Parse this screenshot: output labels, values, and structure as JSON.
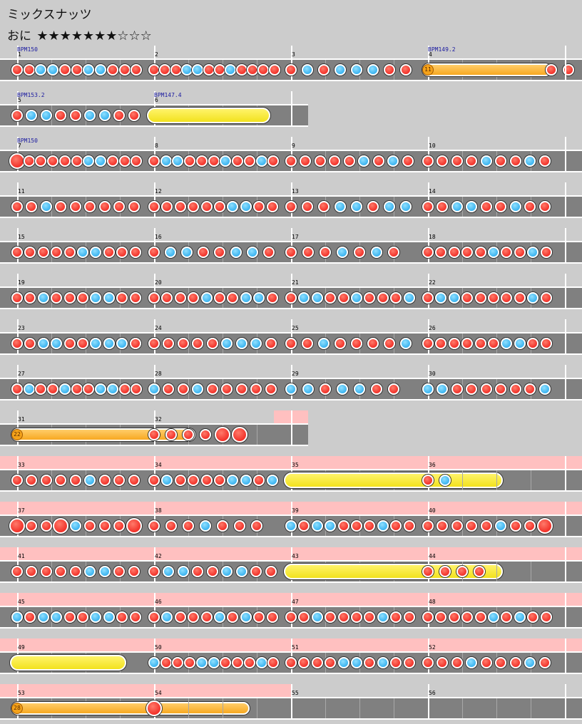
{
  "song": {
    "title": "ミックスナッツ",
    "course": "おに",
    "stars": "★★★★★★★☆☆☆"
  },
  "rows": [
    {
      "top": 64,
      "width": 816,
      "measures": [
        {
          "num": "1",
          "bpm": "BPM150",
          "notes": "ddkkddkkddd"
        },
        {
          "num": "2",
          "notes": "dddkkddkdddd"
        },
        {
          "num": "3",
          "notes": "dkdkkkdd"
        },
        {
          "num": "4",
          "bpm": "BPM149.2",
          "notes": "dd",
          "balloon": "11",
          "roll_to": 0.9
        }
      ]
    },
    {
      "top": 128,
      "width": 432,
      "measures": [
        {
          "num": "5",
          "bpm": "BPM153.2",
          "notes": "dkkddkkdd"
        },
        {
          "num": "6",
          "bpm": "BPM147.4",
          "roll": "yellow",
          "roll_len": 0.9
        }
      ]
    },
    {
      "top": 192,
      "width": 816,
      "measures": [
        {
          "num": "7",
          "bpm": "BPM150",
          "notes": "Ddddddkkddd"
        },
        {
          "num": "8",
          "notes": "dkkdddkddkd"
        },
        {
          "num": "9",
          "notes": "dddddkdkd"
        },
        {
          "num": "10",
          "notes": "ddddkddkd"
        }
      ]
    },
    {
      "top": 256,
      "width": 816,
      "measures": [
        {
          "num": "11",
          "notes": "ddkdddddd"
        },
        {
          "num": "12",
          "notes": "ddddddkkdd"
        },
        {
          "num": "13",
          "notes": "dddkkdkk"
        },
        {
          "num": "14",
          "notes": "ddkkddkdd"
        }
      ]
    },
    {
      "top": 320,
      "width": 816,
      "measures": [
        {
          "num": "15",
          "notes": "dddddkkddd"
        },
        {
          "num": "16",
          "notes": "dkkddkkd"
        },
        {
          "num": "17",
          "notes": "dddkdkd"
        },
        {
          "num": "18",
          "notes": "dddddkddkd"
        }
      ]
    },
    {
      "top": 384,
      "width": 816,
      "measures": [
        {
          "num": "19",
          "notes": "ddkdddkkdd"
        },
        {
          "num": "20",
          "notes": "ddddkddkkd"
        },
        {
          "num": "21",
          "notes": "dkkddkdddk"
        },
        {
          "num": "22",
          "notes": "dkkdddddkd"
        }
      ]
    },
    {
      "top": 448,
      "width": 816,
      "measures": [
        {
          "num": "23",
          "notes": "ddkkddkkkd"
        },
        {
          "num": "24",
          "notes": "dddddkkkd"
        },
        {
          "num": "25",
          "notes": "ddkddddk"
        },
        {
          "num": "26",
          "notes": "ddddddkkdd"
        }
      ]
    },
    {
      "top": 512,
      "width": 816,
      "measures": [
        {
          "num": "27",
          "notes": "dkddkddkkdd"
        },
        {
          "num": "28",
          "notes": "kddkddddd"
        },
        {
          "num": "29",
          "notes": "kkdkkdd"
        },
        {
          "num": "30",
          "notes": "kkddddddk"
        }
      ]
    },
    {
      "top": 576,
      "width": 432,
      "gogo": [
        [
          384,
          432
        ]
      ],
      "measures": [
        {
          "num": "31",
          "balloon": "22",
          "roll_to": 1.3
        },
        {
          "num": "32",
          "notes": "ddddDD"
        }
      ]
    },
    {
      "top": 640,
      "width": 816,
      "gogo": [
        [
          0,
          816
        ]
      ],
      "measures": [
        {
          "num": "33",
          "notes": "dddddkddd"
        },
        {
          "num": "34",
          "notes": "dkddddkkdk"
        },
        {
          "num": "35",
          "roll": "yellow",
          "roll_len": 1.6
        },
        {
          "num": "36",
          "notes": "dk"
        }
      ]
    },
    {
      "top": 704,
      "width": 816,
      "gogo": [
        [
          0,
          816
        ]
      ],
      "measures": [
        {
          "num": "37",
          "notes": "DddDkdddD"
        },
        {
          "num": "38",
          "notes": "dddkddd"
        },
        {
          "num": "39",
          "notes": "kdkkdddkdd"
        },
        {
          "num": "40",
          "notes": "dddddkddD"
        }
      ]
    },
    {
      "top": 768,
      "width": 816,
      "gogo": [
        [
          0,
          816
        ]
      ],
      "measures": [
        {
          "num": "41",
          "notes": "dddddkkdd"
        },
        {
          "num": "42",
          "notes": "dkkddkkdd"
        },
        {
          "num": "43",
          "roll": "yellow",
          "roll_len": 1.6
        },
        {
          "num": "44",
          "notes": "dddd"
        }
      ]
    },
    {
      "top": 832,
      "width": 816,
      "gogo": [
        [
          0,
          816
        ]
      ],
      "measures": [
        {
          "num": "45",
          "notes": "kdkkddkkdd"
        },
        {
          "num": "46",
          "notes": "dkdddkdkdd"
        },
        {
          "num": "47",
          "notes": "ddkddddkdd"
        },
        {
          "num": "48",
          "notes": "dddddkdkdd"
        }
      ]
    },
    {
      "top": 896,
      "width": 816,
      "gogo": [
        [
          0,
          816
        ]
      ],
      "measures": [
        {
          "num": "49",
          "roll": "yellow",
          "roll_len": 0.85
        },
        {
          "num": "50",
          "notes": "kdddkkdddkd"
        },
        {
          "num": "51",
          "notes": "ddddkkdkdd"
        },
        {
          "num": "52",
          "notes": "dddkdddkd"
        }
      ]
    },
    {
      "top": 960,
      "width": 816,
      "gogo": [
        [
          0,
          408
        ]
      ],
      "measures": [
        {
          "num": "53",
          "balloon": "28",
          "roll_to": 1.7
        },
        {
          "num": "54",
          "notes": "D"
        },
        {
          "num": "55"
        },
        {
          "num": "56"
        }
      ]
    }
  ]
}
